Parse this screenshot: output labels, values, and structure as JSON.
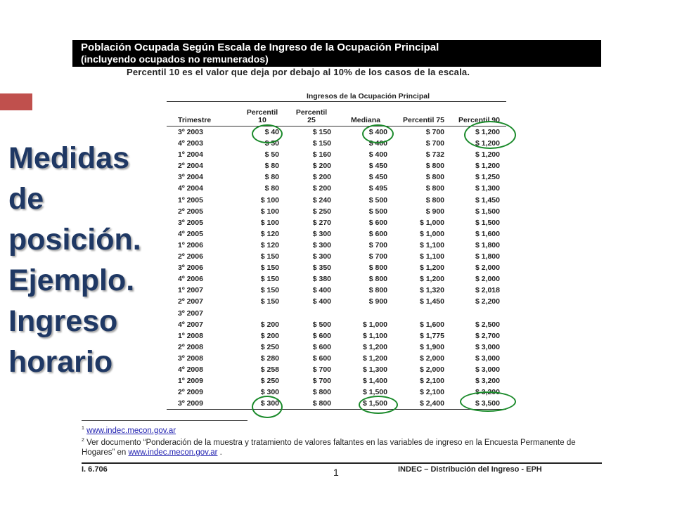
{
  "slide": {
    "title_lines": [
      "Medidas",
      "de",
      "posición.",
      "Ejemplo.",
      "Ingreso",
      "horario"
    ],
    "title_color": "#1f3864",
    "accent_color": "#c0504d",
    "circle_color": "#1a8a2a"
  },
  "document": {
    "header_line1": "Población Ocupada Según Escala de Ingreso de la Ocupación Principal",
    "header_line2": "(incluyendo ocupados no remunerados)",
    "note": "Percentil 10 es el valor que deja por debajo al 10% de los casos de la escala.",
    "table_caption": "Ingresos de la Ocupación Principal",
    "columns": [
      "Trimestre",
      "Percentil 10",
      "Percentil 25",
      "Mediana",
      "Percentil 75",
      "Percentil 90"
    ],
    "rows": [
      [
        "3º 2003",
        "$ 40",
        "$ 150",
        "$ 400",
        "$ 700",
        "$ 1,200"
      ],
      [
        "4º 2003",
        "$ 50",
        "$ 150",
        "$ 400",
        "$ 700",
        "$ 1,200"
      ],
      [
        "1º 2004",
        "$ 50",
        "$ 160",
        "$ 400",
        "$ 732",
        "$ 1,200"
      ],
      [
        "2º 2004",
        "$ 80",
        "$ 200",
        "$ 450",
        "$ 800",
        "$ 1,200"
      ],
      [
        "3º 2004",
        "$ 80",
        "$ 200",
        "$ 450",
        "$ 800",
        "$ 1,250"
      ],
      [
        "4º 2004",
        "$ 80",
        "$ 200",
        "$ 495",
        "$ 800",
        "$ 1,300"
      ],
      [
        "1º 2005",
        "$ 100",
        "$ 240",
        "$ 500",
        "$ 800",
        "$ 1,450"
      ],
      [
        "2º 2005",
        "$ 100",
        "$ 250",
        "$ 500",
        "$ 900",
        "$ 1,500"
      ],
      [
        "3º 2005",
        "$ 100",
        "$ 270",
        "$ 600",
        "$ 1,000",
        "$ 1,500"
      ],
      [
        "4º 2005",
        "$ 120",
        "$ 300",
        "$ 600",
        "$ 1,000",
        "$ 1,600"
      ],
      [
        "1º 2006",
        "$ 120",
        "$ 300",
        "$ 700",
        "$ 1,100",
        "$ 1,800"
      ],
      [
        "2º 2006",
        "$ 150",
        "$ 300",
        "$ 700",
        "$ 1,100",
        "$ 1,800"
      ],
      [
        "3º 2006",
        "$ 150",
        "$ 350",
        "$ 800",
        "$ 1,200",
        "$ 2,000"
      ],
      [
        "4º 2006",
        "$ 150",
        "$ 380",
        "$ 800",
        "$ 1,200",
        "$ 2,000"
      ],
      [
        "1º 2007",
        "$ 150",
        "$ 400",
        "$ 800",
        "$ 1,320",
        "$ 2,018"
      ],
      [
        "2º 2007",
        "$ 150",
        "$ 400",
        "$ 900",
        "$ 1,450",
        "$ 2,200"
      ],
      [
        "3º 2007",
        "",
        "",
        "",
        "",
        ""
      ],
      [
        "4º 2007",
        "$ 200",
        "$ 500",
        "$ 1,000",
        "$ 1,600",
        "$ 2,500"
      ],
      [
        "1º 2008",
        "$ 200",
        "$ 600",
        "$ 1,100",
        "$ 1,775",
        "$ 2,700"
      ],
      [
        "2º 2008",
        "$ 250",
        "$ 600",
        "$ 1,200",
        "$ 1,900",
        "$ 3,000"
      ],
      [
        "3º 2008",
        "$ 280",
        "$ 600",
        "$ 1,200",
        "$ 2,000",
        "$ 3,000"
      ],
      [
        "4º 2008",
        "$ 258",
        "$ 700",
        "$ 1,300",
        "$ 2,000",
        "$ 3,000"
      ],
      [
        "1º 2009",
        "$ 250",
        "$ 700",
        "$ 1,400",
        "$ 2,100",
        "$ 3,200"
      ],
      [
        "2º 2009",
        "$ 300",
        "$ 800",
        "$ 1,500",
        "$ 2,100",
        "$ 3,200"
      ],
      [
        "3º 2009",
        "$ 300",
        "$ 800",
        "$ 1,500",
        "$ 2,400",
        "$ 3,500"
      ]
    ],
    "footnote1_marker": "1",
    "footnote1_link": "www.indec.mecon.gov.ar",
    "footnote2_marker": "2",
    "footnote2_text": "Ver documento “Ponderación de la muestra y tratamiento de valores faltantes en las variables de ingreso en la Encuesta Permanente de Hogares” en ",
    "footnote2_link": "www.indec.mecon.gov.ar",
    "footnote2_end": " .",
    "footer_left": "I. 6.706",
    "footer_page": "1",
    "footer_right": "INDEC – Distribución del Ingreso - EPH"
  }
}
